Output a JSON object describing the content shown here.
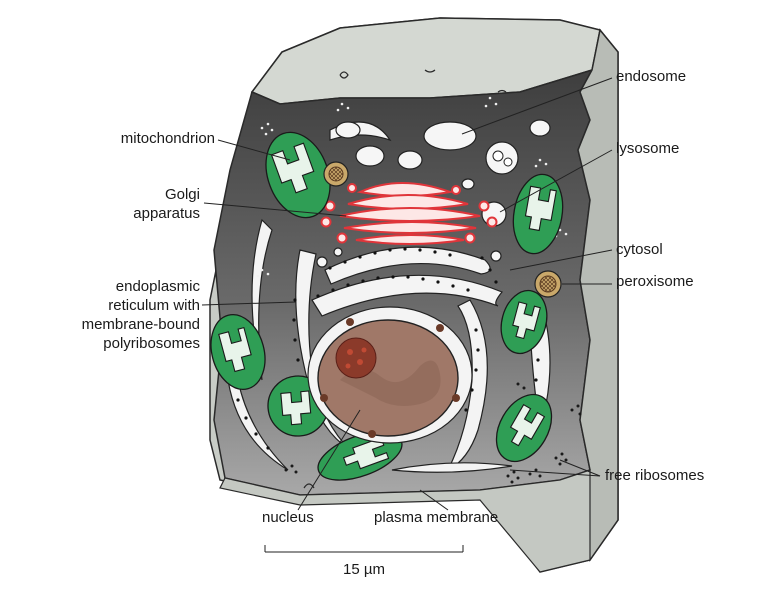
{
  "labels": {
    "endosome": "endosome",
    "mitochondrion": "mitochondrion",
    "lysosome": "lysosome",
    "golgi_1": "Golgi",
    "golgi_2": "apparatus",
    "cytosol": "cytosol",
    "peroxisome": "peroxisome",
    "er_1": "endoplasmic",
    "er_2": "reticulum with",
    "er_3": "membrane-bound",
    "er_4": "polyribosomes",
    "free_ribosomes": "free ribosomes",
    "nucleus": "nucleus",
    "plasma_membrane": "plasma membrane",
    "scale": "15 µm"
  },
  "colors": {
    "cytoplasm_dark": "#4a4a4a",
    "cytoplasm_light": "#bcbcbc",
    "cell_top": "#d4d8d2",
    "mitochondria_fill": "#2f9e55",
    "golgi": "#e0353a",
    "nucleus": "#a07868",
    "nucleolus": "#8b3a2a",
    "peroxisome": "#c9a86a"
  }
}
